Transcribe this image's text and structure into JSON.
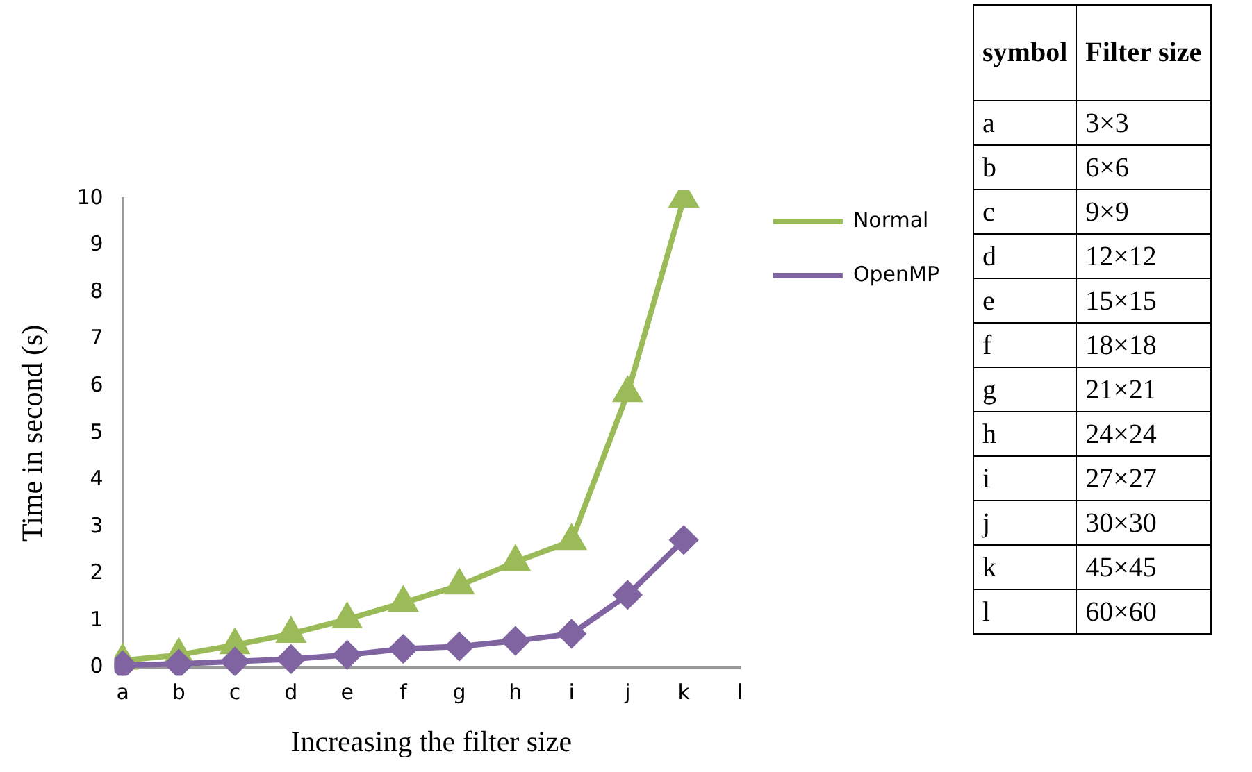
{
  "chart_data": [
    {
      "type": "line",
      "xlabel": "Increasing the filter size",
      "ylabel": "Time in second (s)",
      "categories": [
        "a",
        "b",
        "c",
        "d",
        "e",
        "f",
        "g",
        "h",
        "i",
        "j",
        "k",
        "l"
      ],
      "series": [
        {
          "name": "Normal",
          "color": "#9bbb59",
          "marker": "triangle",
          "values": [
            0.15,
            0.27,
            0.48,
            0.72,
            1.03,
            1.38,
            1.75,
            2.25,
            2.7,
            5.85,
            10,
            null
          ]
        },
        {
          "name": "OpenMP",
          "color": "#8064a2",
          "marker": "diamond",
          "values": [
            0.05,
            0.08,
            0.13,
            0.18,
            0.27,
            0.4,
            0.45,
            0.57,
            0.72,
            1.55,
            2.72,
            null
          ]
        }
      ],
      "ylim": [
        0,
        10
      ],
      "yticks": [
        0,
        1,
        2,
        3,
        4,
        5,
        6,
        7,
        8,
        9,
        10
      ],
      "grid": false,
      "legend": "right",
      "line_style": "solid"
    },
    {
      "type": "other",
      "annotations": [
        "symbol",
        "Filter size",
        "a",
        "3×3",
        "b",
        "6×6",
        "c",
        "9×9",
        "d",
        "12×12",
        "e",
        "15×15",
        "f",
        "18×18",
        "g",
        "21×21",
        "h",
        "24×24",
        "i",
        "27×27",
        "j",
        "30×30",
        "k",
        "45×45",
        "l",
        "60×60"
      ]
    }
  ]
}
